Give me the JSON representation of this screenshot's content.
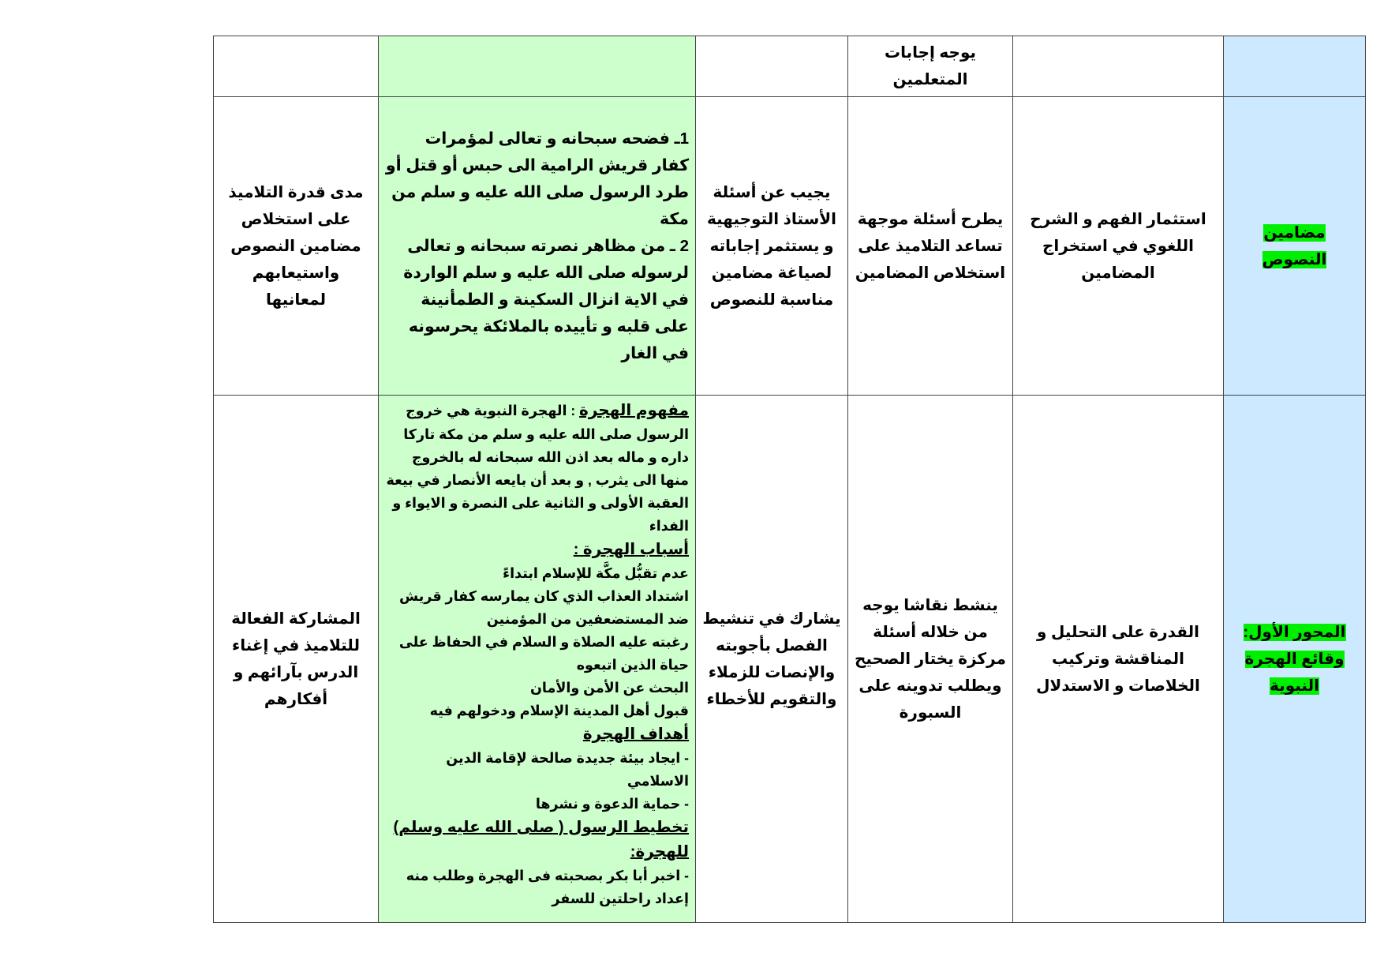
{
  "table": {
    "rows": [
      {
        "axis": "",
        "objective": "",
        "teacher": "يوجه إجابات المتعلمين",
        "learner": "",
        "content": [],
        "evaluation": ""
      },
      {
        "axis": "مضامين النصوص",
        "objective": "استثمار الفهم و الشرح اللغوي في استخراج المضامين",
        "teacher": "يطرح أسئلة موجهة تساعد التلاميذ على استخلاص المضامين",
        "learner": "يجيب عن أسئلة الأستاذ التوجيهية و يستثمر إجاباته لصياغة مضامين مناسبة للنصوص",
        "content": [
          "1ـ  فضحه سبحانه و تعالى لمؤمرات كفار قريش الرامية الى حبس  أو قتل أو طرد الرسول صلى الله عليه و سلم من مكة",
          "2 ـ من مظاهر نصرته سبحانه و تعالى لرسوله صلى الله عليه و سلم الواردة في الاية انزال السكينة  و الطمأنينة على قلبه و تأييده بالملائكة يحرسونه في الغار"
        ],
        "evaluation": "مدى قدرة التلاميذ على استخلاص مضامين النصوص واستيعابهم لمعانيها"
      },
      {
        "axis": "المحور الأول: وقائع الهجرة النبوية",
        "objective": "القدرة على التحليل و المناقشة وتركيب الخلاصات و الاستدلال",
        "teacher": "ينشط نقاشا يوجه من خلاله أسئلة مركزة يختار الصحيح ويطلب تدوينه على السبورة",
        "learner": "يشارك في تنشيط الفصل بأجوبته والإنصات للزملاء والتقويم للأخطاء",
        "content": [
          {
            "heading": "مفهوم الهجرة",
            "text": " : الهجرة النبوية هي خروج الرسول صلى الله عليه و سلم من مكة تاركا داره و ماله بعد اذن الله سبحانه  له بالخروج منها الى يثرب , و بعد أن بايعه الأنصار في بيعة العقبة الأولى و الثانية على النصرة و الايواء و الفداء"
          },
          {
            "heading": "أسباب الهجرة :",
            "text": ""
          },
          {
            "heading": "",
            "text": "عدم تقبُّل مكَّة للإسلام ابتداءً"
          },
          {
            "heading": "",
            "text": "اشتداد العذاب الذي كان يمارسه كفار قريش ضد المستضعفين من المؤمنين"
          },
          {
            "heading": "",
            "text": "رغبته عليه الصلاة و السلام في الحفاظ على حياة الذين اتبعوه"
          },
          {
            "heading": "",
            "text": "البحث عن الأمن والأمان"
          },
          {
            "heading": "",
            "text": "قبول أهل المدينة الإسلام ودخولهم فيه"
          },
          {
            "heading": "أهداف الهجرة",
            "text": ""
          },
          {
            "heading": "",
            "text": "- ايجاد بيئة جديدة صالحة لإقامة الدين الاسلامي"
          },
          {
            "heading": "",
            "text": "- حماية الدعوة و نشرها"
          },
          {
            "heading": "تخطيط الرسول ( صلى الله عليه وسلم) للهجرة:",
            "text": ""
          },
          {
            "heading": "",
            "text": "- اخبر أبا بكر بصحبته فى الهجرة وطلب منه إعداد راحلتين للسفر"
          }
        ],
        "evaluation": "المشاركة الفعالة للتلاميذ في إغناء الدرس بآرائهم و أفكارهم"
      }
    ]
  },
  "colors": {
    "axis_bg": "#cce9ff",
    "content_bg": "#ccffcc",
    "highlight": "#00ee00"
  }
}
